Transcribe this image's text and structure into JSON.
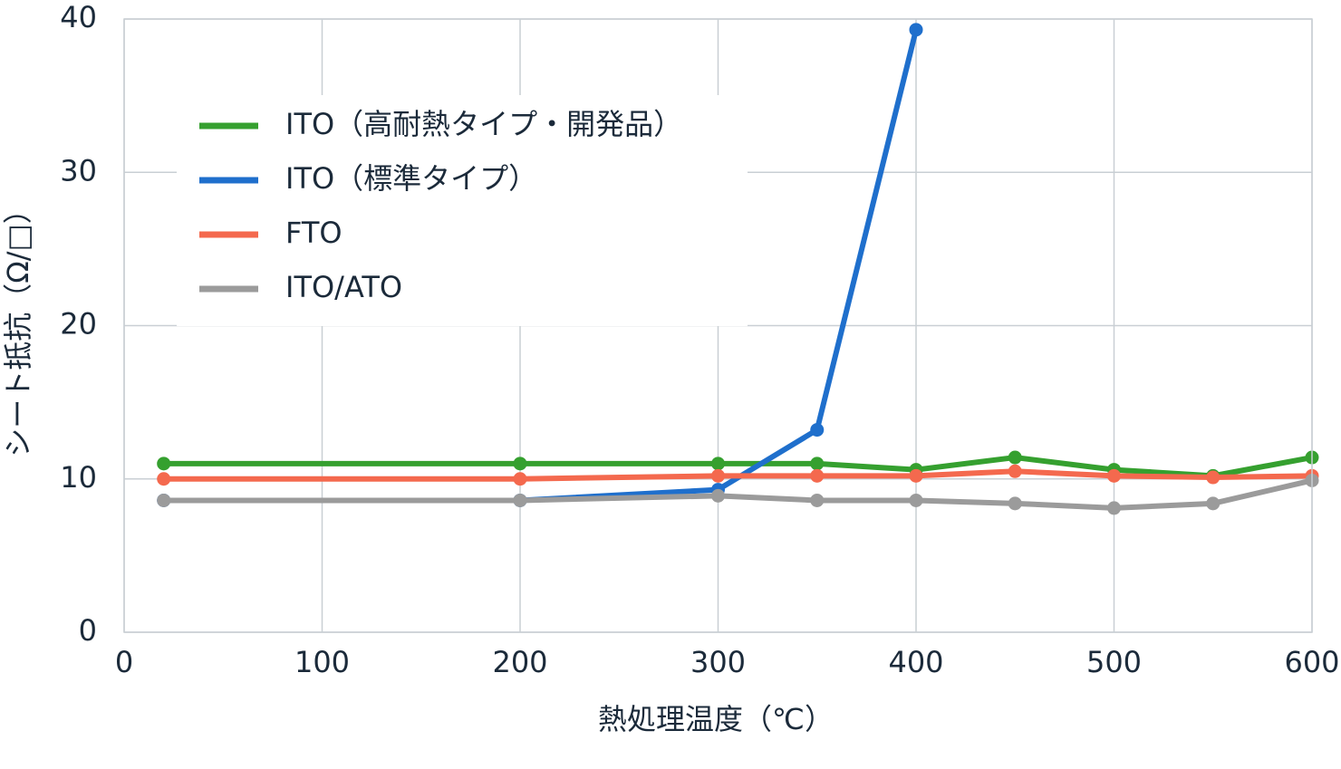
{
  "chart_data": {
    "type": "line",
    "x_label": "熱処理温度（℃）",
    "y_label": "シート抵抗（Ω/□）",
    "x": [
      20,
      200,
      300,
      350,
      400,
      450,
      500,
      550,
      600
    ],
    "series": [
      {
        "name": "ITO（高耐熱タイプ・開発品）",
        "color": "#35a02f",
        "values": [
          11,
          11,
          11,
          11,
          10.6,
          11.4,
          10.6,
          10.2,
          11.4
        ]
      },
      {
        "name": "ITO（標準タイプ）",
        "color": "#1f6fcc",
        "values": [
          8.6,
          8.6,
          9.3,
          13.2,
          39.3,
          null,
          null,
          null,
          null
        ]
      },
      {
        "name": "FTO",
        "color": "#f4694e",
        "values": [
          10,
          10,
          10.2,
          10.2,
          10.2,
          10.5,
          10.2,
          10.1,
          10.2
        ]
      },
      {
        "name": "ITO/ATO",
        "color": "#9b9b9b",
        "values": [
          8.6,
          8.6,
          8.9,
          8.6,
          8.6,
          8.4,
          8.1,
          8.4,
          9.9
        ]
      }
    ],
    "xlim": [
      0,
      600
    ],
    "xticks": [
      0,
      100,
      200,
      300,
      400,
      500,
      600
    ],
    "ylim": [
      0,
      40
    ],
    "yticks": [
      0,
      10,
      20,
      30,
      40
    ],
    "grid": true,
    "legend": "upper-left"
  }
}
